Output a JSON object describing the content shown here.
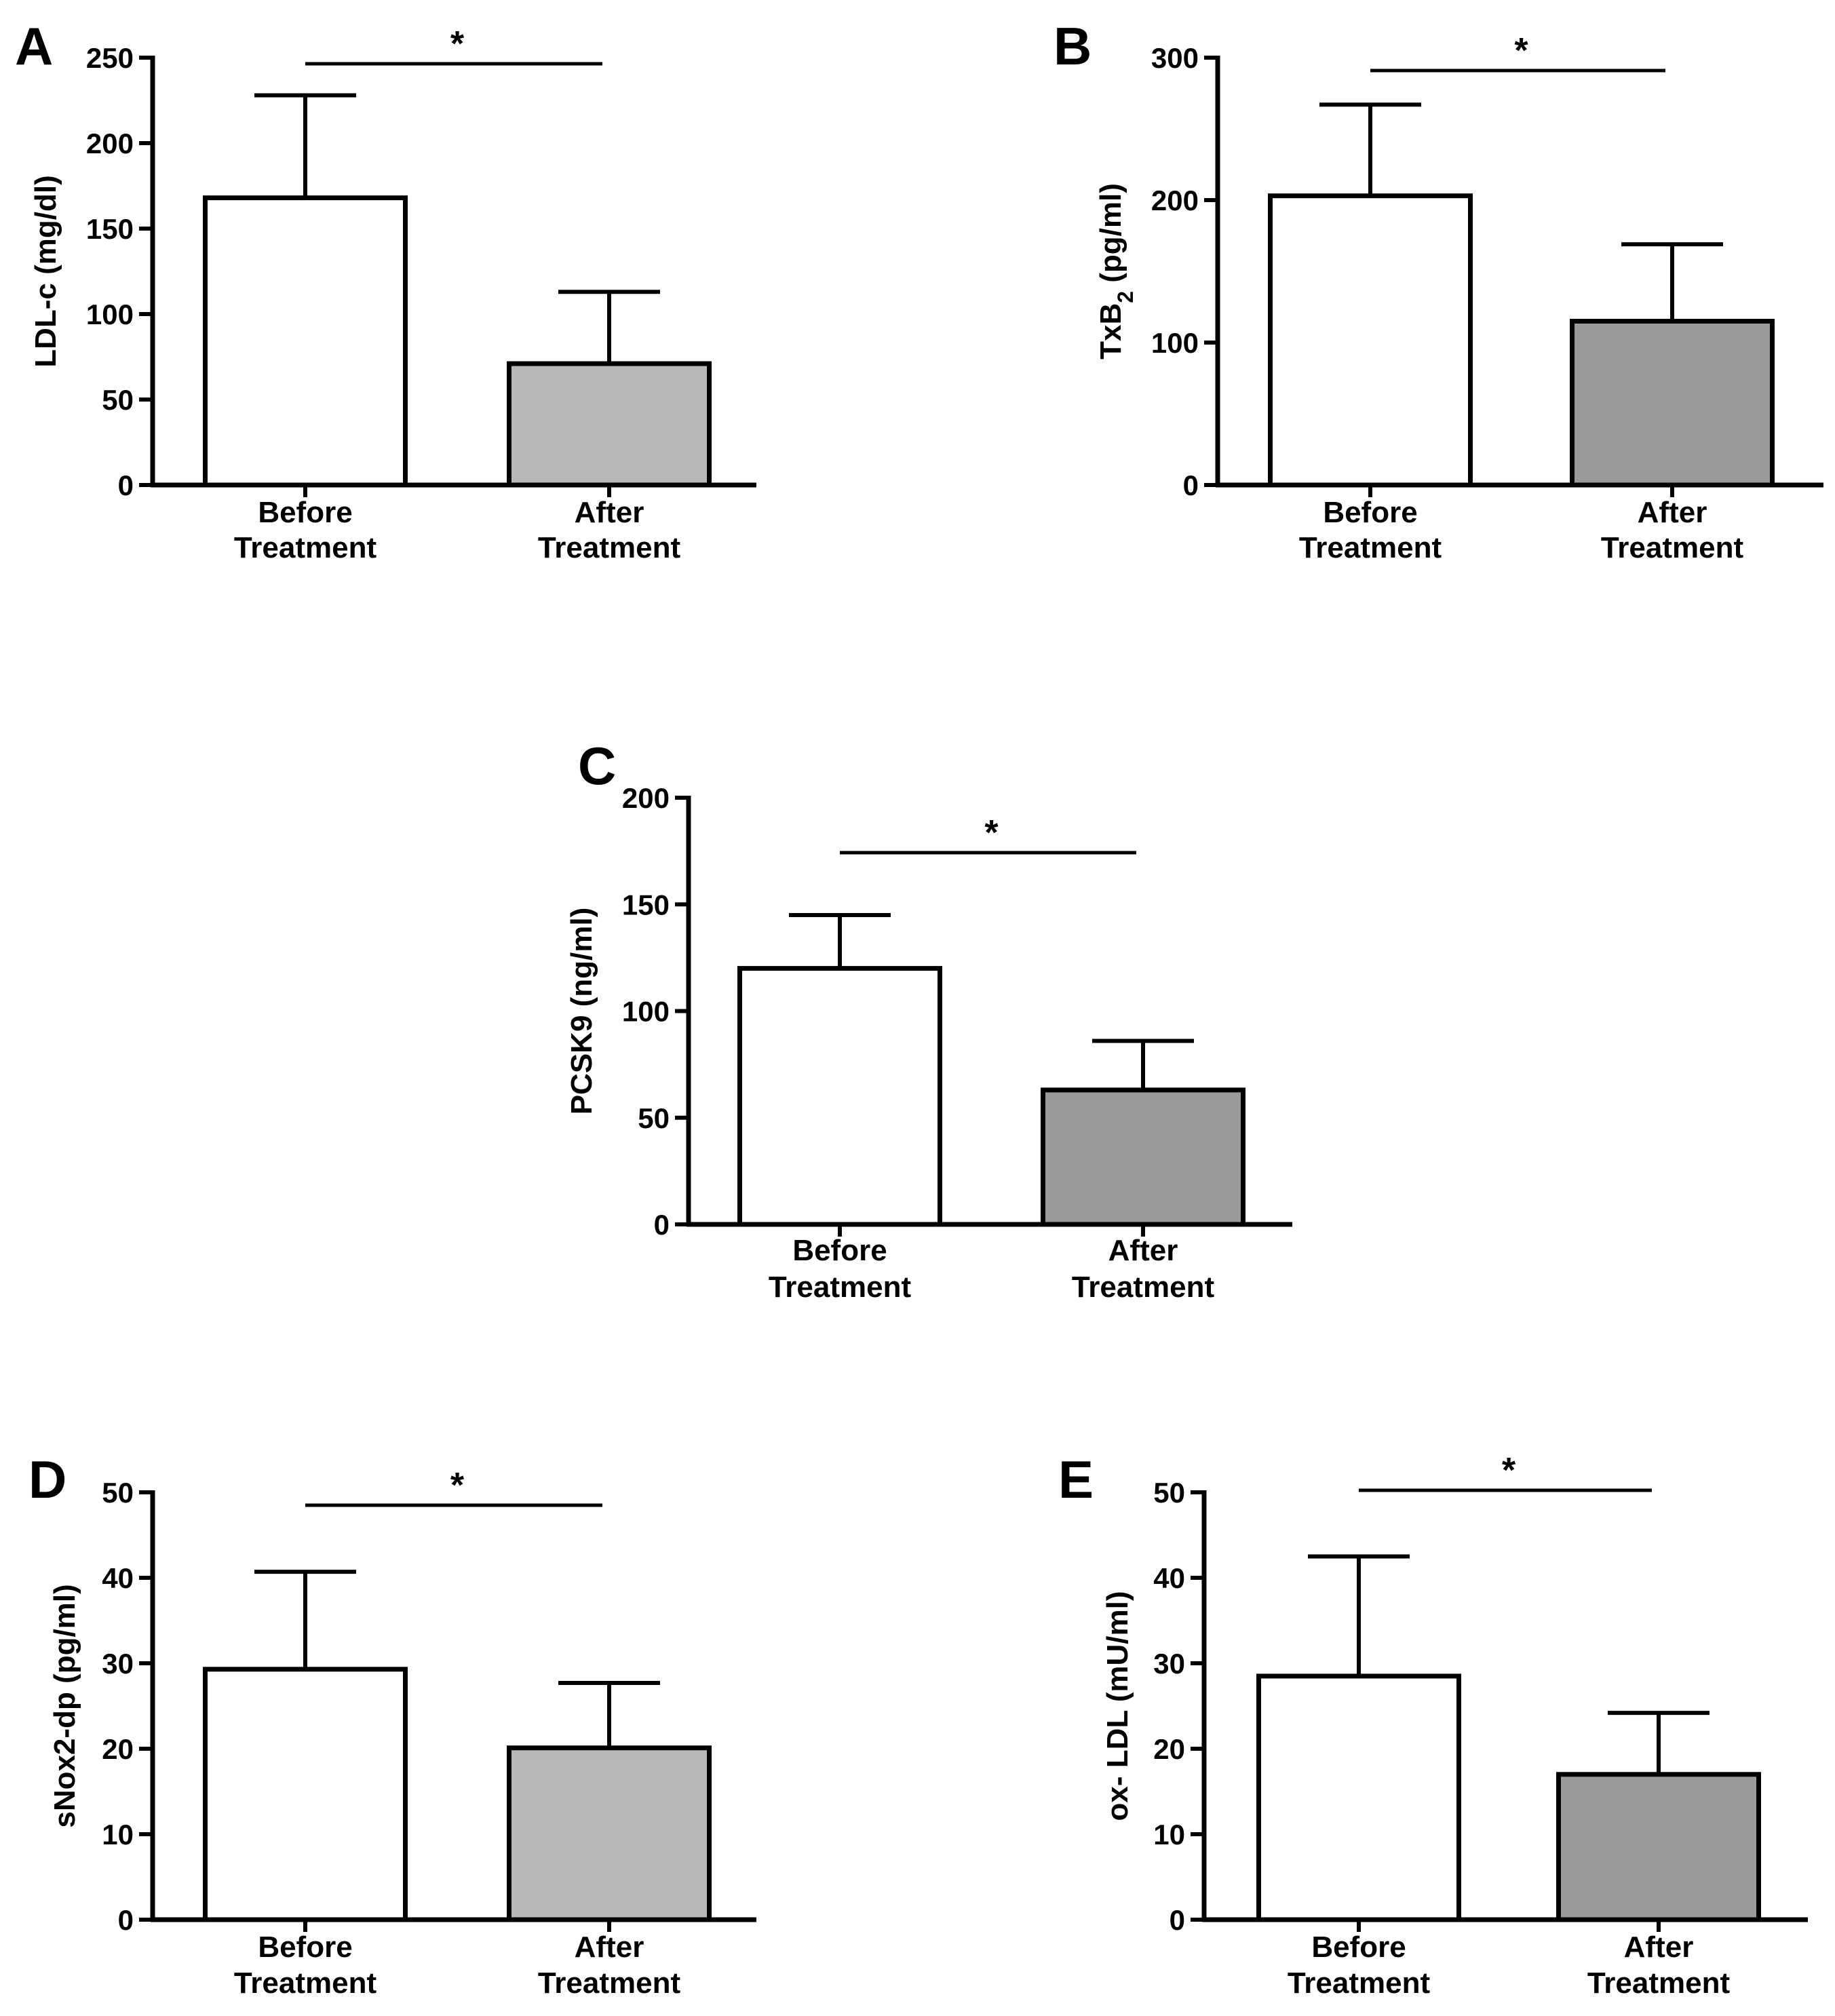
{
  "chart_data": [
    {
      "panel": "A",
      "type": "bar",
      "categories": [
        "Before Treatment",
        "After Treatment"
      ],
      "category_lines": [
        [
          "Before",
          "Treatment"
        ],
        [
          "After",
          "Treatment"
        ]
      ],
      "values": [
        168,
        71
      ],
      "errors": [
        60,
        42
      ],
      "bar_colors": [
        "#ffffff",
        "#b8b8b8"
      ],
      "ylabel": "LDL-c (mg/dl)",
      "ylim": [
        0,
        250
      ],
      "yticks": [
        0,
        50,
        100,
        150,
        200,
        250
      ],
      "significance": "*"
    },
    {
      "panel": "B",
      "type": "bar",
      "categories": [
        "Before Treatment",
        "After Treatment"
      ],
      "category_lines": [
        [
          "Before",
          "Treatment"
        ],
        [
          "After",
          "Treatment"
        ]
      ],
      "values": [
        203,
        115
      ],
      "errors": [
        64,
        54
      ],
      "bar_colors": [
        "#ffffff",
        "#9a9a9a"
      ],
      "ylabel": "TxB",
      "ylabel_subscript": "2",
      "ylabel_suffix": " (pg/ml)",
      "ylim": [
        0,
        300
      ],
      "yticks": [
        0,
        100,
        200,
        300
      ],
      "significance": "*"
    },
    {
      "panel": "C",
      "type": "bar",
      "categories": [
        "Before Treatment",
        "After Treatment"
      ],
      "category_lines": [
        [
          "Before",
          "Treatment"
        ],
        [
          "After",
          "Treatment"
        ]
      ],
      "values": [
        120,
        63
      ],
      "errors": [
        25,
        23
      ],
      "bar_colors": [
        "#ffffff",
        "#9a9a9a"
      ],
      "ylabel": "PCSK9 (ng/ml)",
      "ylim": [
        0,
        200
      ],
      "yticks": [
        0,
        50,
        100,
        150,
        200
      ],
      "significance": "*"
    },
    {
      "panel": "D",
      "type": "bar",
      "categories": [
        "Before Treatment",
        "After Treatment"
      ],
      "category_lines": [
        [
          "Before",
          "Treatment"
        ],
        [
          "After",
          "Treatment"
        ]
      ],
      "values": [
        29.3,
        20.1
      ],
      "errors": [
        11.4,
        7.6
      ],
      "bar_colors": [
        "#ffffff",
        "#b8b8b8"
      ],
      "ylabel": "sNox2-dp (pg/ml)",
      "ylim": [
        0,
        50
      ],
      "yticks": [
        0,
        10,
        20,
        30,
        40,
        50
      ],
      "significance": "*"
    },
    {
      "panel": "E",
      "type": "bar",
      "categories": [
        "Before Treatment",
        "After Treatment"
      ],
      "category_lines": [
        [
          "Before",
          "Treatment"
        ],
        [
          "After",
          "Treatment"
        ]
      ],
      "values": [
        28.5,
        17
      ],
      "errors": [
        14,
        7.2
      ],
      "bar_colors": [
        "#ffffff",
        "#9a9a9a"
      ],
      "ylabel": "ox- LDL (mU/ml)",
      "ylim": [
        0,
        50
      ],
      "yticks": [
        0,
        10,
        20,
        30,
        40,
        50
      ],
      "significance": "*"
    }
  ]
}
